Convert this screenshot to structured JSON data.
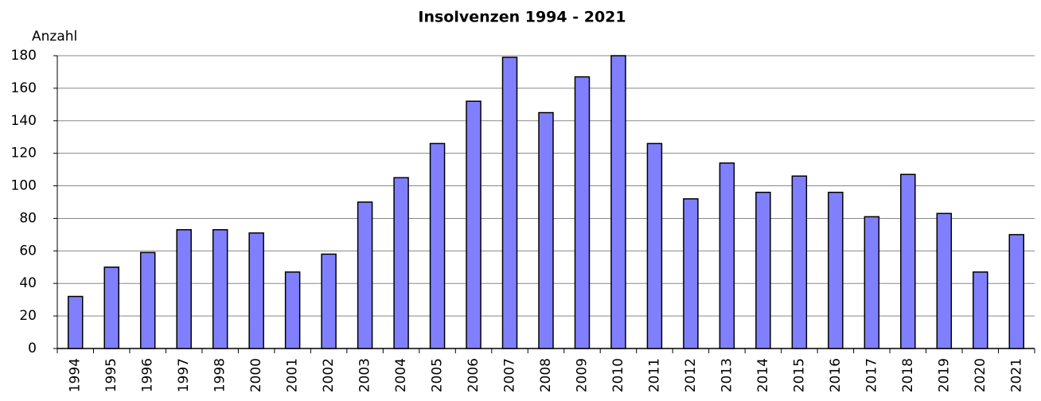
{
  "chart_data": {
    "type": "bar",
    "title": "Insolvenzen 1994 - 2021",
    "y_label": "Anzahl",
    "categories": [
      "1994",
      "1995",
      "1996",
      "1997",
      "1998",
      "2000",
      "2001",
      "2002",
      "2003",
      "2004",
      "2005",
      "2006",
      "2007",
      "2008",
      "2009",
      "2010",
      "2011",
      "2012",
      "2013",
      "2014",
      "2015",
      "2016",
      "2017",
      "2018",
      "2019",
      "2020",
      "2021"
    ],
    "values": [
      32,
      50,
      59,
      73,
      73,
      71,
      47,
      58,
      90,
      105,
      126,
      152,
      179,
      145,
      167,
      180,
      126,
      92,
      114,
      96,
      106,
      96,
      81,
      107,
      83,
      47,
      70
    ],
    "color": "#8080ff",
    "ylim": [
      0,
      180
    ],
    "yticks": [
      0,
      20,
      40,
      60,
      80,
      100,
      120,
      140,
      160,
      180
    ],
    "grid": true
  }
}
